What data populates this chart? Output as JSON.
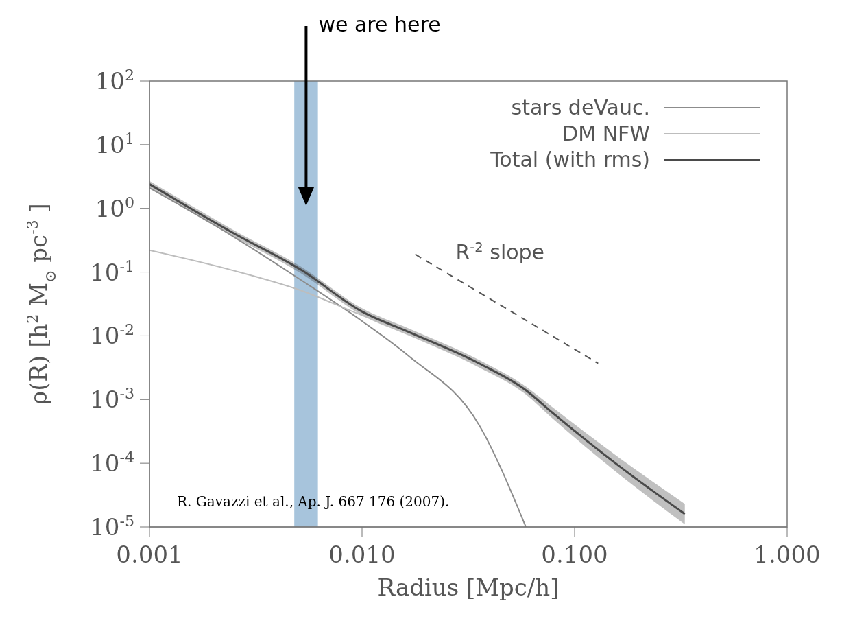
{
  "chart_data": {
    "type": "line",
    "xlabel": "Radius [Mpc/h]",
    "ylabel": "ρ(R)  [h$^{2}$ M$_{⊙}$ pc$^{-3}$]",
    "log": "xy",
    "x": [
      0.001,
      0.00245,
      0.0052,
      0.01,
      0.0166,
      0.0355,
      0.059,
      0.077,
      0.163,
      0.33
    ],
    "series": [
      {
        "name": "stars deVauc.",
        "color": "#8c8c8c",
        "values": [
          2.1,
          0.37,
          0.074,
          0.017,
          0.0048,
          0.0004,
          1e-05,
          null,
          null,
          null
        ]
      },
      {
        "name": "DM NFW",
        "color": "#bdbdbd",
        "values": [
          0.22,
          0.107,
          0.051,
          0.021,
          0.0115,
          0.0037,
          0.0013,
          0.00066,
          8.9e-05,
          1.6e-05
        ]
      },
      {
        "name": "Total (with rms)",
        "color": "#4a4a4a",
        "values": [
          2.4,
          0.42,
          0.107,
          0.024,
          0.0115,
          0.0037,
          0.0014,
          0.00066,
          8.9e-05,
          1.6e-05
        ],
        "lower": [
          2.1,
          0.37,
          0.094,
          0.021,
          0.0101,
          0.0032,
          0.0012,
          0.00054,
          6.6e-05,
          1.1e-05
        ],
        "upper": [
          2.7,
          0.47,
          0.12,
          0.027,
          0.013,
          0.0042,
          0.0016,
          0.0008,
          0.00012,
          2.3e-05
        ]
      },
      {
        "type": "line",
        "color": "#555555",
        "line_style": "dashed",
        "x": [
          0.0178,
          0.129
        ],
        "values": [
          0.19,
          0.0037
        ]
      }
    ],
    "xlim": [
      0.001,
      1
    ],
    "xticks": [
      {
        "value": 0.001,
        "label": "0.001"
      },
      {
        "value": 0.01,
        "label": "0.010"
      },
      {
        "value": 0.1,
        "label": "0.100"
      },
      {
        "value": 1,
        "label": "1.000"
      }
    ],
    "ylim": [
      1e-05,
      100
    ],
    "yticks": [
      {
        "value": 1e-05,
        "label": "10$^{-5}$"
      },
      {
        "value": 0.0001,
        "label": "10$^{-4}$"
      },
      {
        "value": 0.001,
        "label": "10$^{-3}$"
      },
      {
        "value": 0.01,
        "label": "10$^{-2}$"
      },
      {
        "value": 0.1,
        "label": "10$^{-1}$"
      },
      {
        "value": 1,
        "label": "10$^{0}$"
      },
      {
        "value": 10,
        "label": "10$^{1}$"
      },
      {
        "value": 100,
        "label": "10$^{2}$"
      }
    ],
    "bands": [
      {
        "axis": "x",
        "from": 0.0048,
        "to": 0.0062,
        "color": "#a7c4dc"
      }
    ],
    "annotations": [
      "we are here",
      "R$^{-2}$ slope",
      "R. Gavazzi et al., Ap. J. 667 176 (2007)."
    ],
    "legend": "top right",
    "grid": false,
    "marker": "none"
  }
}
